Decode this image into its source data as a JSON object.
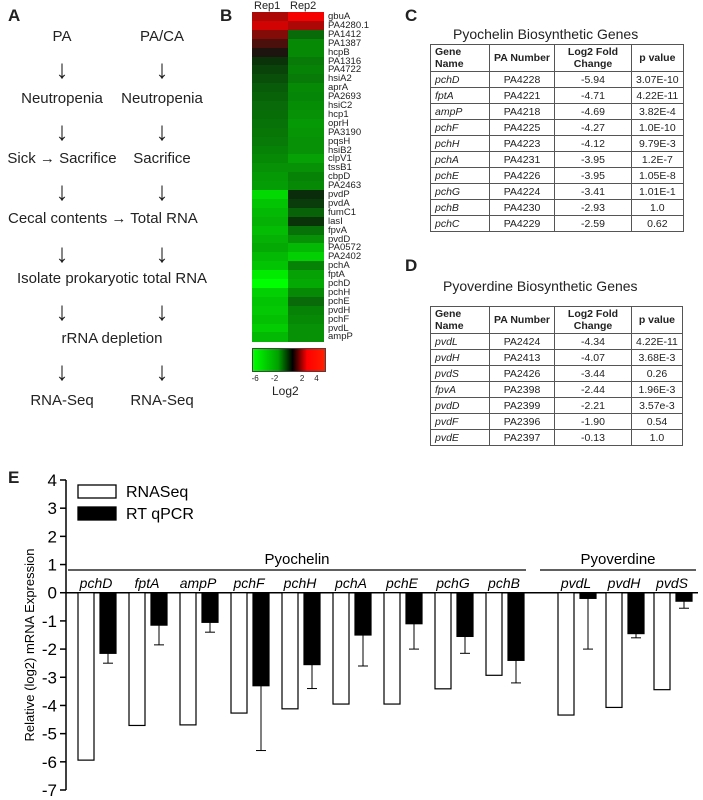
{
  "panels": {
    "A": "A",
    "B": "B",
    "C": "C",
    "D": "D",
    "E": "E"
  },
  "flow": {
    "left": [
      "PA",
      "Neutropenia",
      "Sick → Sacrifice",
      "Cecal contents → Total RNA"
    ],
    "right": [
      "PA/CA",
      "Neutropenia",
      "Sacrifice",
      "Total RNA"
    ],
    "shared": [
      "Isolate prokaryotic total RNA",
      "rRNA depletion"
    ],
    "end_left": "RNA-Seq",
    "end_right": "RNA-Seq"
  },
  "heatmap": {
    "columns": [
      "Rep1",
      "Rep2"
    ],
    "genes": [
      "gbuA",
      "PA4280.1",
      "PA1412",
      "PA1387",
      "hcpB",
      "PA1316",
      "PA4722",
      "hsiA2",
      "aprA",
      "PA2693",
      "hsiC2",
      "hcp1",
      "oprH",
      "PA3190",
      "pqsH",
      "hsiB2",
      "clpV1",
      "tssB1",
      "cbpD",
      "PA2463",
      "pvdP",
      "pvdA",
      "fumC1",
      "lasI",
      "fpvA",
      "pvdD",
      "PA0572",
      "PA2402",
      "pchA",
      "fptA",
      "pchD",
      "pchH",
      "pchE",
      "pvdH",
      "pchF",
      "pvdL",
      "ampP"
    ],
    "rep1": [
      2.5,
      3.2,
      1.8,
      0.8,
      0,
      -0.8,
      -1.2,
      -1.5,
      -1.8,
      -2,
      -2.2,
      -2.3,
      -2.4,
      -2.5,
      -2.6,
      -2.8,
      -3,
      -3.2,
      -3.4,
      -3.5,
      -5,
      -4.5,
      -4.2,
      -4,
      -4.3,
      -4,
      -3.8,
      -4.2,
      -4.5,
      -5.5,
      -6,
      -4.8,
      -4.5,
      -4.6,
      -4.4,
      -4.7,
      -4.2
    ],
    "rep2": [
      3.8,
      2.5,
      -2.2,
      -3,
      -3,
      -2.6,
      -2.8,
      -2.6,
      -3,
      -2.9,
      -3.1,
      -3.2,
      -3.4,
      -3.3,
      -3.2,
      -3.2,
      -3.6,
      -3.2,
      -2.8,
      -3,
      -0.6,
      -1,
      -2,
      -0.8,
      -2.4,
      -3.2,
      -4.2,
      -4.8,
      -2.8,
      -3.6,
      -3.8,
      -3,
      -2.2,
      -2.8,
      -3,
      -3.2,
      -3.2
    ],
    "scale_ticks": [
      "-6",
      "-2",
      "2",
      "4"
    ],
    "scale_label": "Log2"
  },
  "table_c": {
    "title": "Pyochelin Biosynthetic Genes",
    "headers": [
      "Gene Name",
      "PA Number",
      "Log2 Fold Change",
      "p value"
    ],
    "rows": [
      [
        "pchD",
        "PA4228",
        "-5.94",
        "3.07E-10"
      ],
      [
        "fptA",
        "PA4221",
        "-4.71",
        "4.22E-11"
      ],
      [
        "ampP",
        "PA4218",
        "-4.69",
        "3.82E-4"
      ],
      [
        "pchF",
        "PA4225",
        "-4.27",
        "1.0E-10"
      ],
      [
        "pchH",
        "PA4223",
        "-4.12",
        "9.79E-3"
      ],
      [
        "pchA",
        "PA4231",
        "-3.95",
        "1.2E-7"
      ],
      [
        "pchE",
        "PA4226",
        "-3.95",
        "1.05E-8"
      ],
      [
        "pchG",
        "PA4224",
        "-3.41",
        "1.01E-1"
      ],
      [
        "pchB",
        "PA4230",
        "-2.93",
        "1.0"
      ],
      [
        "pchC",
        "PA4229",
        "-2.59",
        "0.62"
      ]
    ]
  },
  "table_d": {
    "title": "Pyoverdine Biosynthetic Genes",
    "headers": [
      "Gene Name",
      "PA Number",
      "Log2 Fold Change",
      "p value"
    ],
    "rows": [
      [
        "pvdL",
        "PA2424",
        "-4.34",
        "4.22E-11"
      ],
      [
        "pvdH",
        "PA2413",
        "-4.07",
        "3.68E-3"
      ],
      [
        "pvdS",
        "PA2426",
        "-3.44",
        "0.26"
      ],
      [
        "fpvA",
        "PA2398",
        "-2.44",
        "1.96E-3"
      ],
      [
        "pvdD",
        "PA2399",
        "-2.21",
        "3.57e-3"
      ],
      [
        "pvdF",
        "PA2396",
        "-1.90",
        "0.54"
      ],
      [
        "pvdE",
        "PA2397",
        "-0.13",
        "1.0"
      ]
    ]
  },
  "chart_data": {
    "type": "bar",
    "ylabel": "Relative (log2) mRNA Expression",
    "ylim": [
      -7,
      4
    ],
    "yticks": [
      4,
      3,
      2,
      1,
      0,
      -1,
      -2,
      -3,
      -4,
      -5,
      -6,
      -7
    ],
    "groups": [
      {
        "name": "Pyochelin",
        "categories": [
          "pchD",
          "fptA",
          "ampP",
          "pchF",
          "pchH",
          "pchA",
          "pchE",
          "pchG",
          "pchB"
        ]
      },
      {
        "name": "Pyoverdine",
        "categories": [
          "pvdL",
          "pvdH",
          "pvdS"
        ]
      }
    ],
    "categories": [
      "pchD",
      "fptA",
      "ampP",
      "pchF",
      "pchH",
      "pchA",
      "pchE",
      "pchG",
      "pchB",
      "pvdL",
      "pvdH",
      "pvdS"
    ],
    "series": [
      {
        "name": "RNASeq",
        "fill": "#ffffff",
        "values": [
          -5.94,
          -4.71,
          -4.69,
          -4.27,
          -4.12,
          -3.95,
          -3.95,
          -3.41,
          -2.93,
          -4.34,
          -4.07,
          -3.44
        ]
      },
      {
        "name": "RT qPCR",
        "fill": "#000000",
        "values": [
          -2.15,
          -1.15,
          -1.05,
          -3.3,
          -2.55,
          -1.5,
          -1.1,
          -1.55,
          -2.4,
          -0.2,
          -1.45,
          -0.3
        ],
        "errors": [
          0.35,
          0.7,
          0.35,
          2.3,
          0.85,
          1.1,
          0.9,
          0.6,
          0.8,
          1.8,
          0.15,
          0.25
        ]
      }
    ],
    "legend_position": "top-left"
  }
}
